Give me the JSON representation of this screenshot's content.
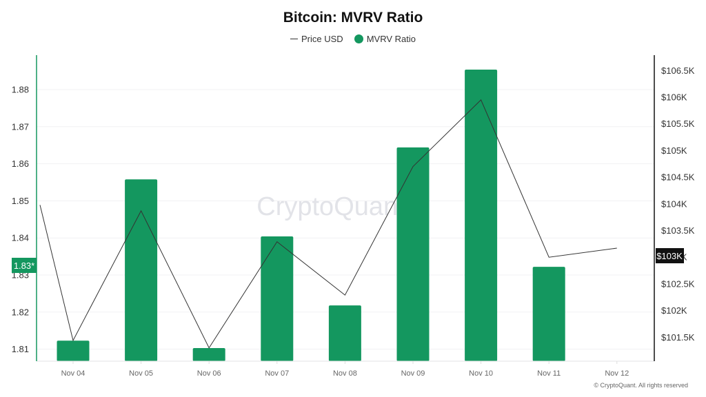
{
  "title": "Bitcoin: MVRV Ratio",
  "legend": [
    {
      "label": "Price USD",
      "marker": "line",
      "color": "#333333"
    },
    {
      "label": "MVRV Ratio",
      "marker": "dot",
      "color": "#14975f"
    }
  ],
  "watermark": "CryptoQuant",
  "footer": "© CryptoQuant. All rights reserved",
  "current_left_label": "1.83*",
  "current_right_label": "$103K",
  "colors": {
    "bar": "#14975f",
    "line": "#333333",
    "left_axis": "#14975f",
    "right_axis": "#111111"
  },
  "chart_data": {
    "type": "bar+line",
    "title": "Bitcoin: MVRV Ratio",
    "categories": [
      "Nov 04",
      "Nov 05",
      "Nov 06",
      "Nov 07",
      "Nov 08",
      "Nov 09",
      "Nov 10",
      "Nov 11",
      "Nov 12"
    ],
    "series": [
      {
        "name": "MVRV Ratio",
        "type": "bar",
        "axis": "left",
        "values": [
          1.8123,
          1.8558,
          1.8103,
          1.8404,
          1.8218,
          1.8644,
          1.8854,
          1.8322,
          null
        ]
      },
      {
        "name": "Price USD",
        "type": "line",
        "axis": "right",
        "start_value": 103980,
        "values": [
          101440,
          103870,
          101300,
          103290,
          102290,
          104700,
          105950,
          103000,
          103170
        ]
      }
    ],
    "left_axis": {
      "ticks": [
        "1.81",
        "1.82",
        "1.83",
        "1.84",
        "1.85",
        "1.86",
        "1.87",
        "1.88"
      ],
      "ylim": [
        1.807,
        1.89
      ]
    },
    "right_axis": {
      "ticks": [
        "$101.5K",
        "$102K",
        "$102.5K",
        "$103K",
        "$103.5K",
        "$104K",
        "$104.5K",
        "$105K",
        "$105.5K",
        "$106K",
        "$106.5K"
      ],
      "ylim": [
        101050,
        107000
      ]
    },
    "xlabel": "",
    "ylabel": "",
    "grid": true,
    "legend_position": "top"
  }
}
